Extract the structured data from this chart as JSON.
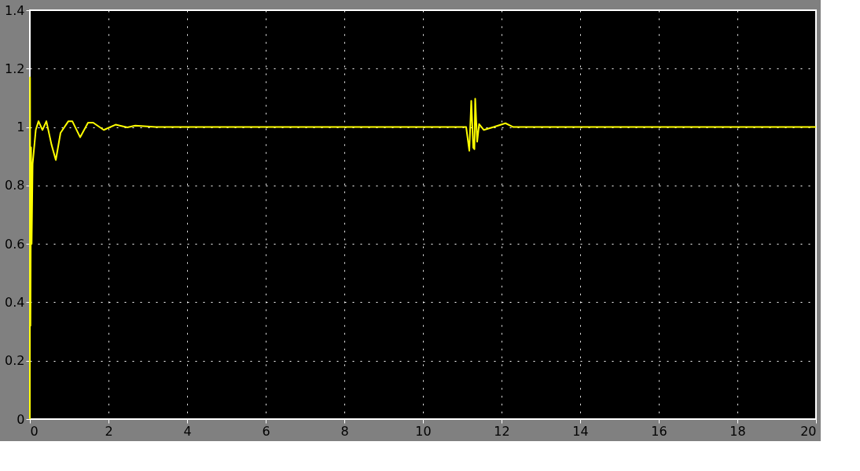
{
  "chart_data": {
    "type": "line",
    "xlim": [
      0,
      20
    ],
    "ylim": [
      0,
      1.4
    ],
    "xticks": [
      0,
      2,
      4,
      6,
      8,
      10,
      12,
      14,
      16,
      18,
      20
    ],
    "yticks": [
      0,
      0.2,
      0.4,
      0.6,
      0.8,
      1,
      1.2,
      1.4
    ],
    "grid": true,
    "line_style": "solid",
    "x": [
      0,
      0.005,
      0.015,
      0.03,
      0.045,
      0.07,
      0.15,
      0.22,
      0.32,
      0.42,
      0.55,
      0.66,
      0.78,
      0.98,
      1.08,
      1.28,
      1.48,
      1.61,
      1.88,
      2.18,
      2.48,
      2.68,
      3.2,
      5,
      8,
      10,
      11.0,
      11.1,
      11.18,
      11.23,
      11.28,
      11.31,
      11.33,
      11.38,
      11.43,
      11.55,
      11.8,
      12.1,
      12.3,
      15,
      20
    ],
    "series": [
      {
        "color": "#ffff00",
        "values": [
          0,
          1.17,
          0.32,
          0.93,
          0.6,
          0.874,
          0.99,
          1.02,
          0.99,
          1.02,
          0.94,
          0.887,
          0.98,
          1.02,
          1.02,
          0.965,
          1.015,
          1.015,
          0.99,
          1.008,
          0.999,
          1.005,
          1.0,
          1.0,
          1.0,
          1.0,
          1.0,
          1.0,
          0.919,
          1.09,
          0.93,
          0.924,
          1.097,
          0.95,
          1.01,
          0.99,
          1.0,
          1.013,
          1.0,
          1.0,
          1.0
        ]
      }
    ]
  }
}
